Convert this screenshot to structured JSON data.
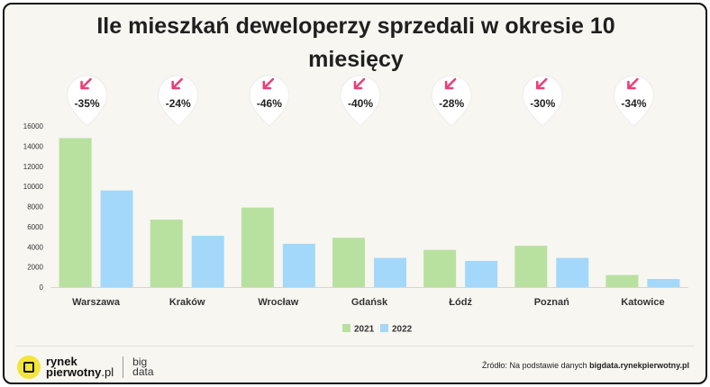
{
  "chart_data": {
    "type": "bar",
    "title_line1": "Ile mieszkań deweloperzy sprzedali w okresie 10",
    "title_line2": "miesięcy",
    "categories": [
      "Warszawa",
      "Kraków",
      "Wrocław",
      "Gdańsk",
      "Łódź",
      "Poznań",
      "Katowice"
    ],
    "series": [
      {
        "name": "2021",
        "color": "#b8e1a0",
        "values": [
          14800,
          6700,
          7900,
          4900,
          3700,
          4100,
          1200
        ]
      },
      {
        "name": "2022",
        "color": "#a3d8fb",
        "values": [
          9600,
          5100,
          4300,
          2900,
          2600,
          2900,
          800
        ]
      }
    ],
    "changes": [
      "-35%",
      "-24%",
      "-46%",
      "-40%",
      "-28%",
      "-30%",
      "-34%"
    ],
    "arrow_color": "#e8407a",
    "ylim": [
      0,
      16000
    ],
    "yticks": [
      0,
      2000,
      4000,
      6000,
      8000,
      10000,
      12000,
      14000,
      16000
    ],
    "legend_position": "bottom-center",
    "grid": false
  },
  "footer": {
    "logo_line1": "rynek",
    "logo_line2_bold": "pierwotny",
    "logo_line2_light": ".pl",
    "logo_big_line1": "big",
    "logo_big_line2": "data",
    "source_prefix": "Źródło: Na podstawie danych",
    "source_link": "bigdata.rynekpierwotny.pl"
  }
}
